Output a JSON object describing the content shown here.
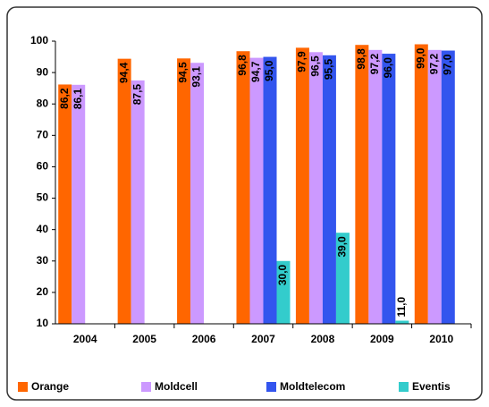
{
  "chart_data": {
    "type": "bar",
    "categories": [
      "2004",
      "2005",
      "2006",
      "2007",
      "2008",
      "2009",
      "2010"
    ],
    "series": [
      {
        "name": "Orange",
        "color": "#ff6600",
        "values": [
          86.2,
          94.4,
          94.5,
          96.8,
          97.9,
          98.8,
          99.0
        ],
        "value_labels": [
          "86,2",
          "94,4",
          "94,5",
          "96,8",
          "97,9",
          "98,8",
          "99,0"
        ]
      },
      {
        "name": "Moldcell",
        "color": "#cc99ff",
        "values": [
          86.1,
          87.5,
          93.1,
          94.7,
          96.5,
          97.2,
          97.2
        ],
        "value_labels": [
          "86,1",
          "87,5",
          "93,1",
          "94,7",
          "96,5",
          "97,2",
          "97,2"
        ]
      },
      {
        "name": "Moldtelecom",
        "color": "#3355ee",
        "values": [
          null,
          null,
          null,
          95.0,
          95.5,
          96.0,
          97.0
        ],
        "value_labels": [
          null,
          null,
          null,
          "95,0",
          "95,5",
          "96,0",
          "97,0"
        ]
      },
      {
        "name": "Eventis",
        "color": "#33cccc",
        "values": [
          null,
          null,
          null,
          30.0,
          39.0,
          11.0,
          null
        ],
        "value_labels": [
          null,
          null,
          null,
          "30,0",
          "39,0",
          "11,0",
          null
        ]
      }
    ],
    "ylim": [
      10,
      100
    ],
    "yticks": [
      10,
      20,
      30,
      40,
      50,
      60,
      70,
      80,
      90,
      100
    ],
    "grid": false,
    "legend": "bottom"
  }
}
